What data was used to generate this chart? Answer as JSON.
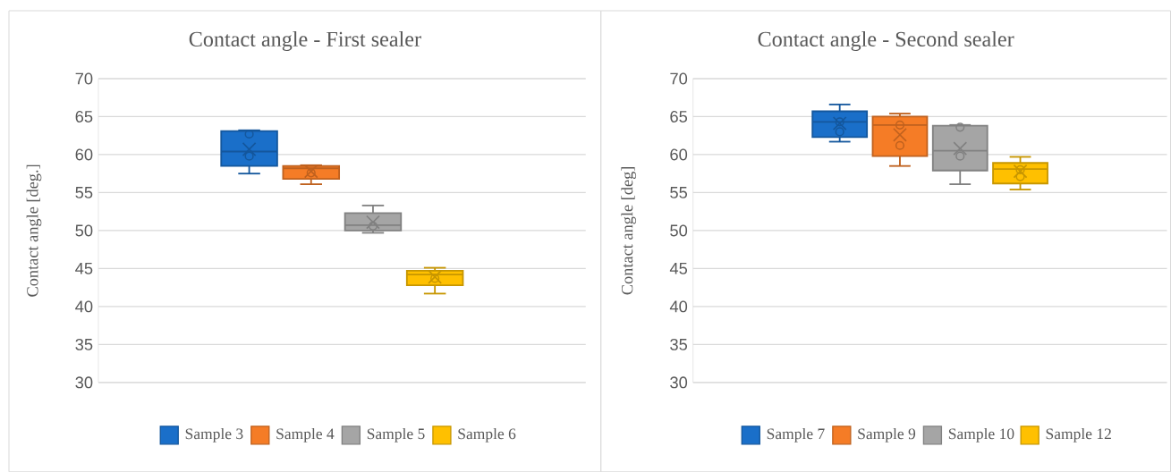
{
  "chart_data": [
    {
      "type": "box",
      "title": "Contact angle - First sealer",
      "ylabel": "Contact angle [deg.]",
      "categories": [
        null
      ],
      "ylim": [
        30,
        70
      ],
      "yticks": [
        30,
        35,
        40,
        45,
        50,
        55,
        60,
        65,
        70
      ],
      "grid": "y",
      "legend": "bottom",
      "series": [
        {
          "name": "Sample 3",
          "color": "#1a6fc9",
          "boxes": [
            {
              "low": 57.5,
              "q1": 58.5,
              "median": 60.4,
              "q3": 63.1,
              "high": 63.2,
              "mean": 60.7,
              "outliers": [
                62.7,
                59.8
              ]
            }
          ]
        },
        {
          "name": "Sample 4",
          "color": "#f57c26",
          "boxes": [
            {
              "low": 56.1,
              "q1": 56.8,
              "median": 58.2,
              "q3": 58.5,
              "high": 58.6,
              "mean": 57.8,
              "outliers": [
                57.6
              ]
            }
          ]
        },
        {
          "name": "Sample 5",
          "color": "#a5a5a5",
          "boxes": [
            {
              "low": 49.7,
              "q1": 50.0,
              "median": 50.7,
              "q3": 52.3,
              "high": 53.3,
              "mean": 51.1,
              "outliers": [
                50.6
              ]
            }
          ]
        },
        {
          "name": "Sample 6",
          "color": "#ffc000",
          "boxes": [
            {
              "low": 41.7,
              "q1": 42.8,
              "median": 44.2,
              "q3": 44.7,
              "high": 45.1,
              "mean": 43.9,
              "outliers": [
                43.7
              ]
            }
          ]
        }
      ]
    },
    {
      "type": "box",
      "title": "Contact angle - Second sealer",
      "ylabel": "Contact angle [deg]",
      "categories": [
        null
      ],
      "ylim": [
        30,
        70
      ],
      "yticks": [
        30,
        35,
        40,
        45,
        50,
        55,
        60,
        65,
        70
      ],
      "grid": "y",
      "legend": "bottom",
      "series": [
        {
          "name": "Sample 7",
          "color": "#1a6fc9",
          "boxes": [
            {
              "low": 61.7,
              "q1": 62.3,
              "median": 64.3,
              "q3": 65.7,
              "high": 66.6,
              "mean": 64.1,
              "outliers": [
                64.3,
                63.0
              ]
            }
          ]
        },
        {
          "name": "Sample 9",
          "color": "#f57c26",
          "boxes": [
            {
              "low": 58.5,
              "q1": 59.8,
              "median": 63.9,
              "q3": 65.0,
              "high": 65.4,
              "mean": 62.6,
              "outliers": [
                63.9,
                61.2
              ]
            }
          ]
        },
        {
          "name": "Sample 10",
          "color": "#a5a5a5",
          "boxes": [
            {
              "low": 56.1,
              "q1": 57.9,
              "median": 60.5,
              "q3": 63.8,
              "high": 63.9,
              "mean": 60.8,
              "outliers": [
                63.6,
                59.8
              ]
            }
          ]
        },
        {
          "name": "Sample 12",
          "color": "#ffc000",
          "boxes": [
            {
              "low": 55.4,
              "q1": 56.2,
              "median": 58.1,
              "q3": 58.9,
              "high": 59.7,
              "mean": 57.8,
              "outliers": [
                58.0,
                57.1
              ]
            }
          ]
        }
      ]
    }
  ]
}
